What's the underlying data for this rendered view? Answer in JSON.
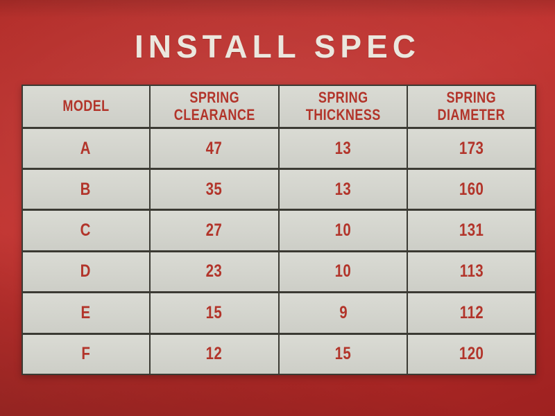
{
  "title": "INSTALL SPEC",
  "chart_data": {
    "type": "table",
    "title": "INSTALL SPEC",
    "columns": [
      "MODEL",
      "SPRING CLEARANCE",
      "SPRING THICKNESS",
      "SPRING DIAMETER"
    ],
    "rows": [
      [
        "A",
        "47",
        "13",
        "173"
      ],
      [
        "B",
        "35",
        "13",
        "160"
      ],
      [
        "C",
        "27",
        "10",
        "131"
      ],
      [
        "D",
        "23",
        "10",
        "113"
      ],
      [
        "E",
        "15",
        "9",
        "112"
      ],
      [
        "F",
        "12",
        "15",
        "120"
      ]
    ]
  },
  "colors": {
    "background_red": "#b52c29",
    "cell_background": "#d5d6cf",
    "table_text_red": "#b2342a",
    "title_text": "#ebe7de",
    "grid_line": "#3b3a33"
  }
}
